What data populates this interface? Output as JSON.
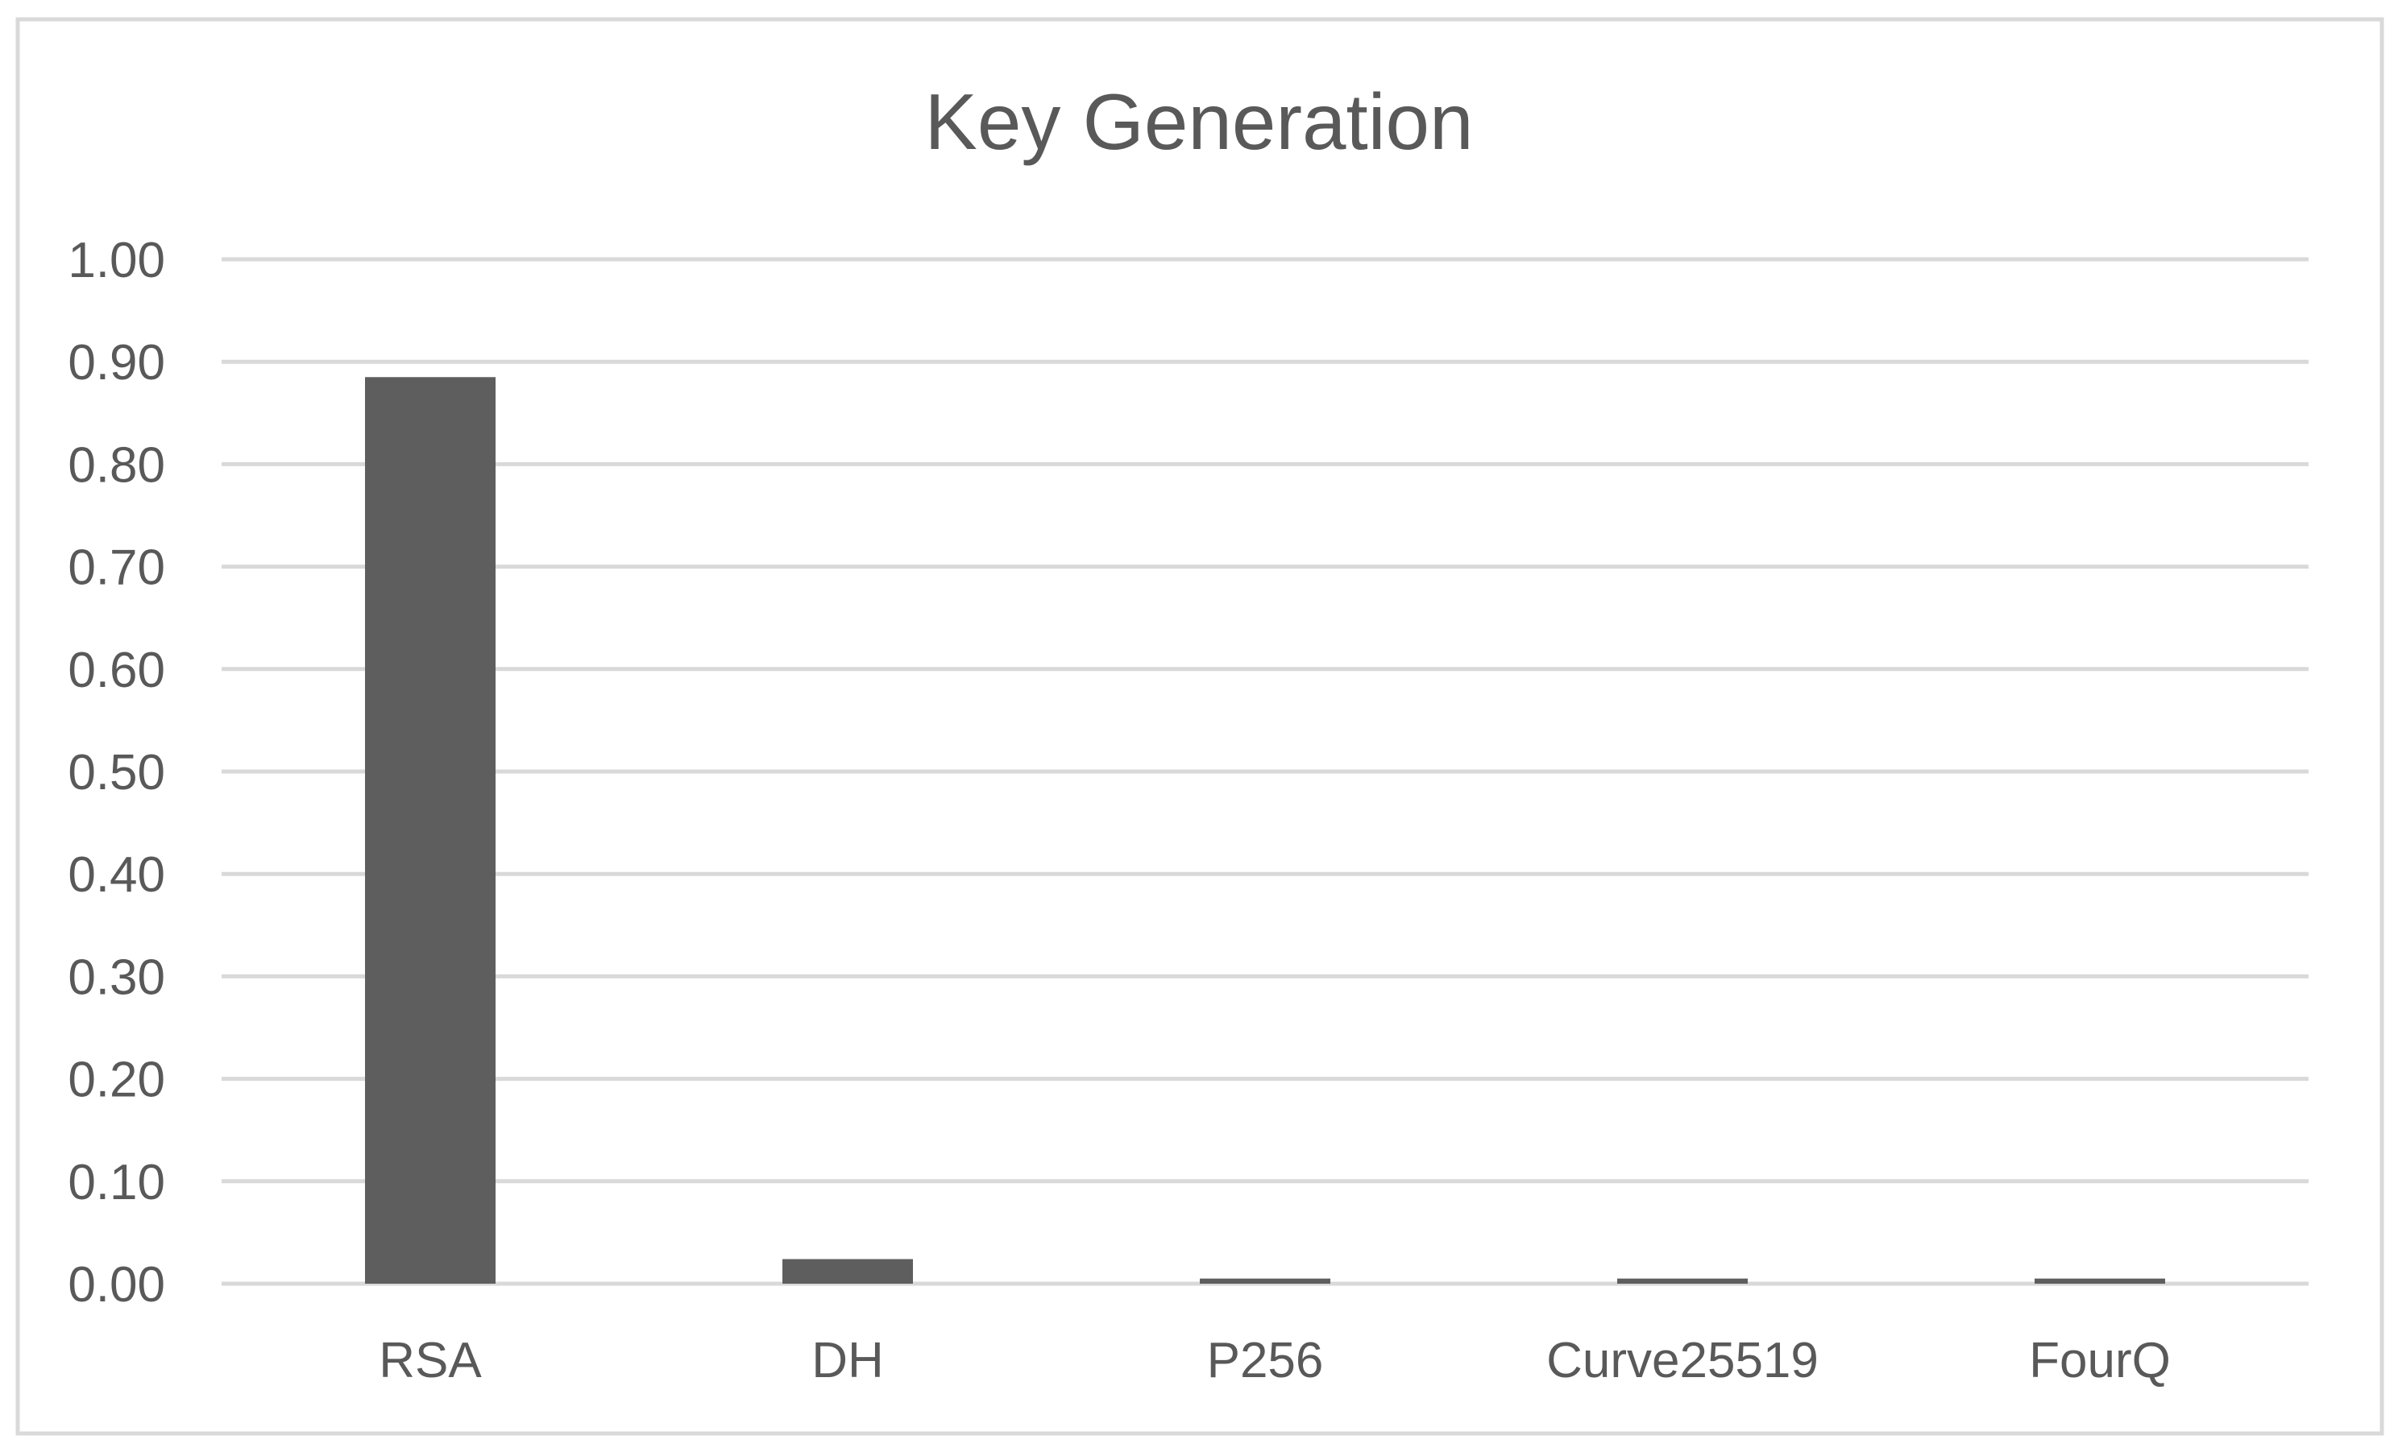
{
  "chart_data": {
    "type": "bar",
    "title": "Key Generation",
    "xlabel": "",
    "ylabel": "",
    "categories": [
      "RSA",
      "DH",
      "P256",
      "Curve25519",
      "FourQ"
    ],
    "values": [
      0.885,
      0.024,
      0.005,
      0.005,
      0.005
    ],
    "ylim": [
      0,
      1.0
    ],
    "yticks": [
      "0.00",
      "0.10",
      "0.20",
      "0.30",
      "0.40",
      "0.50",
      "0.60",
      "0.70",
      "0.80",
      "0.90",
      "1.00"
    ],
    "grid": true,
    "legend": "none",
    "colors": {
      "bar": "#5e5e5e",
      "grid": "#d9d9d9",
      "text": "#595959",
      "border": "#d9d9d9"
    }
  }
}
